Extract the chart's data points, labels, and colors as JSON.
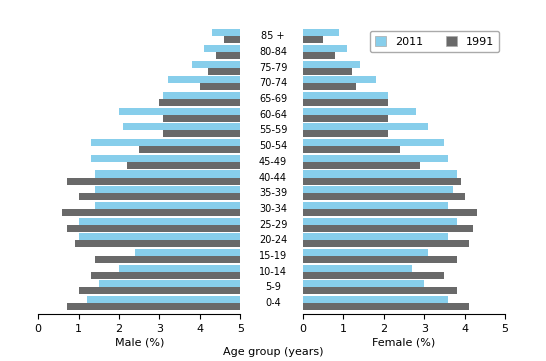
{
  "age_groups": [
    "0-4",
    "5-9",
    "10-14",
    "15-19",
    "20-24",
    "25-29",
    "30-34",
    "35-39",
    "40-44",
    "45-49",
    "50-54",
    "55-59",
    "60-64",
    "65-69",
    "70-74",
    "75-79",
    "80-84",
    "85 +"
  ],
  "male_2011": [
    3.8,
    3.5,
    3.0,
    2.6,
    4.0,
    4.0,
    3.6,
    3.6,
    3.6,
    3.7,
    3.7,
    2.9,
    3.0,
    1.9,
    1.8,
    1.2,
    0.9,
    0.7
  ],
  "male_1991": [
    4.3,
    4.0,
    3.7,
    3.6,
    4.1,
    4.3,
    4.4,
    4.0,
    4.3,
    2.8,
    2.5,
    1.9,
    1.9,
    2.0,
    1.0,
    0.8,
    0.6,
    0.4
  ],
  "female_2011": [
    3.6,
    3.0,
    2.7,
    3.1,
    3.6,
    3.8,
    3.6,
    3.7,
    3.8,
    3.6,
    3.5,
    3.1,
    2.8,
    2.1,
    1.8,
    1.4,
    1.1,
    0.9
  ],
  "female_1991": [
    4.1,
    3.8,
    3.5,
    3.8,
    4.1,
    4.2,
    4.3,
    4.0,
    3.9,
    2.9,
    2.4,
    2.1,
    2.1,
    2.1,
    1.3,
    1.2,
    0.8,
    0.5
  ],
  "color_2011": "#87ceeb",
  "color_1991": "#696969",
  "xlabel_left": "Male (%)",
  "xlabel_right": "Female (%)",
  "xlabel_center": "Age group (years)",
  "xlim": 5.0,
  "xticks": [
    0,
    1,
    2,
    3,
    4,
    5
  ]
}
